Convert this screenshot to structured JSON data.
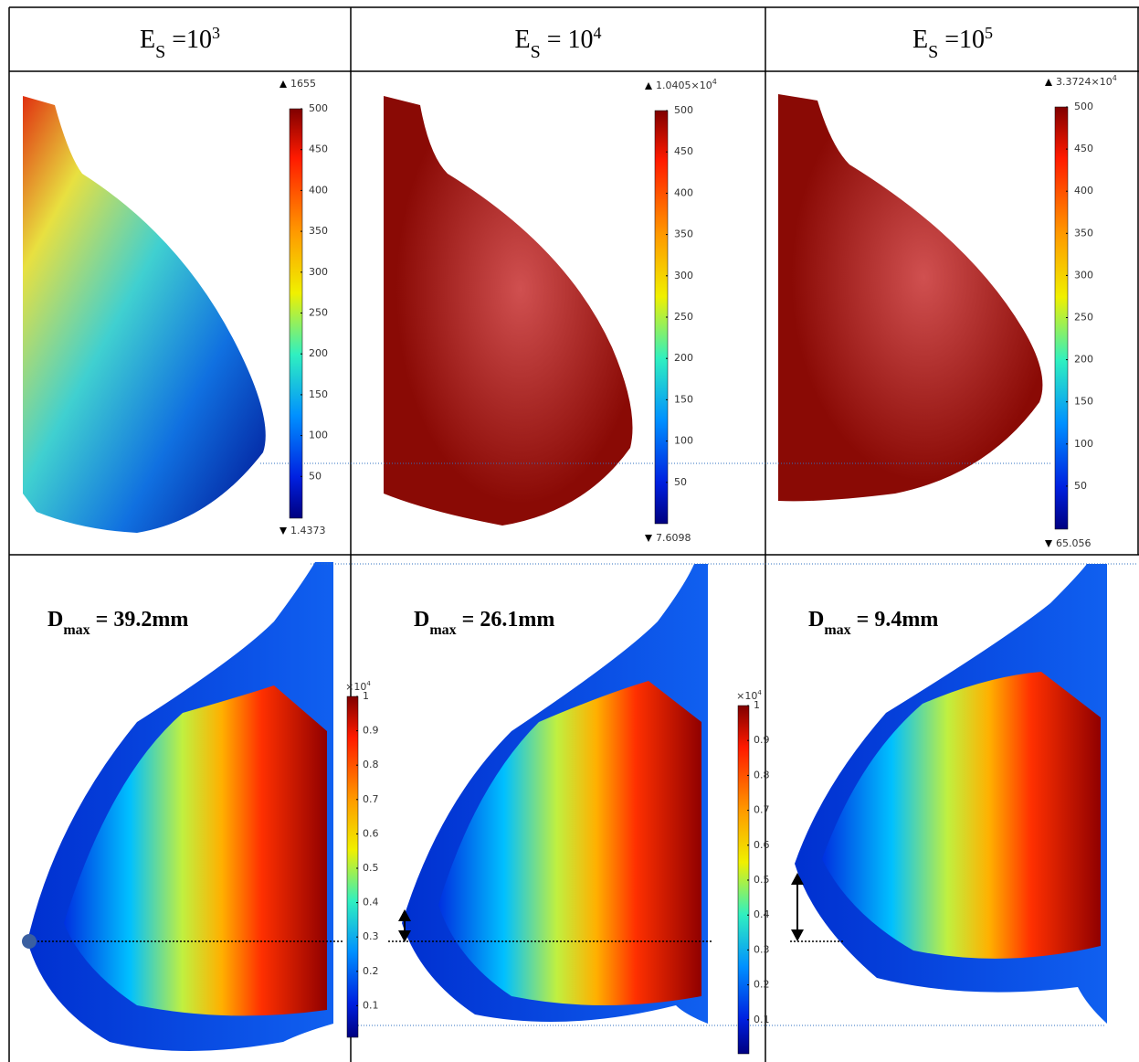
{
  "header": {
    "cells": [
      {
        "base": "E",
        "sub": "S",
        "eq": " =10",
        "sup": "3"
      },
      {
        "base": "E",
        "sub": "S",
        "eq": " =  10",
        "sup": "4"
      },
      {
        "base": "E",
        "sub": "S",
        "eq": " =10",
        "sup": "5"
      }
    ]
  },
  "stress_panels": [
    {
      "max": {
        "mantissa": "1655"
      },
      "min": "1.4373",
      "ticks": [
        "500",
        "450",
        "400",
        "350",
        "300",
        "250",
        "200",
        "150",
        "100",
        "50"
      ]
    },
    {
      "max": {
        "mantissa": "1.0405×10",
        "exp": "4"
      },
      "min": "7.6098",
      "ticks": [
        "500",
        "450",
        "400",
        "350",
        "300",
        "250",
        "200",
        "150",
        "100",
        "50"
      ]
    },
    {
      "max": {
        "mantissa": "3.3724×10",
        "exp": "4"
      },
      "min": "65.056",
      "ticks": [
        "500",
        "450",
        "400",
        "350",
        "300",
        "250",
        "200",
        "150",
        "100",
        "50"
      ]
    }
  ],
  "displacement_panels": [
    {
      "dmax": {
        "symbol": "D",
        "sub": "max",
        "text": " = 39.2mm"
      },
      "colorbar": {
        "scale": {
          "text": "×10",
          "exp": "4"
        },
        "ticks": [
          "1",
          "0.9",
          "0.8",
          "0.7",
          "0.6",
          "0.5",
          "0.4",
          "0.3",
          "0.2",
          "0.1"
        ]
      }
    },
    {
      "dmax": {
        "symbol": "D",
        "sub": "max",
        "text": " = 26.1mm"
      },
      "colorbar": {
        "scale": {
          "text": "×10",
          "exp": "4"
        },
        "ticks": [
          "1",
          "0.9",
          "0.8",
          "0.7",
          "0.6",
          "0.5",
          "0.4",
          "0.3",
          "0.2",
          "0.1"
        ]
      }
    },
    {
      "dmax": {
        "symbol": "D",
        "sub": "max",
        "text": " = 9.4mm"
      }
    }
  ]
}
